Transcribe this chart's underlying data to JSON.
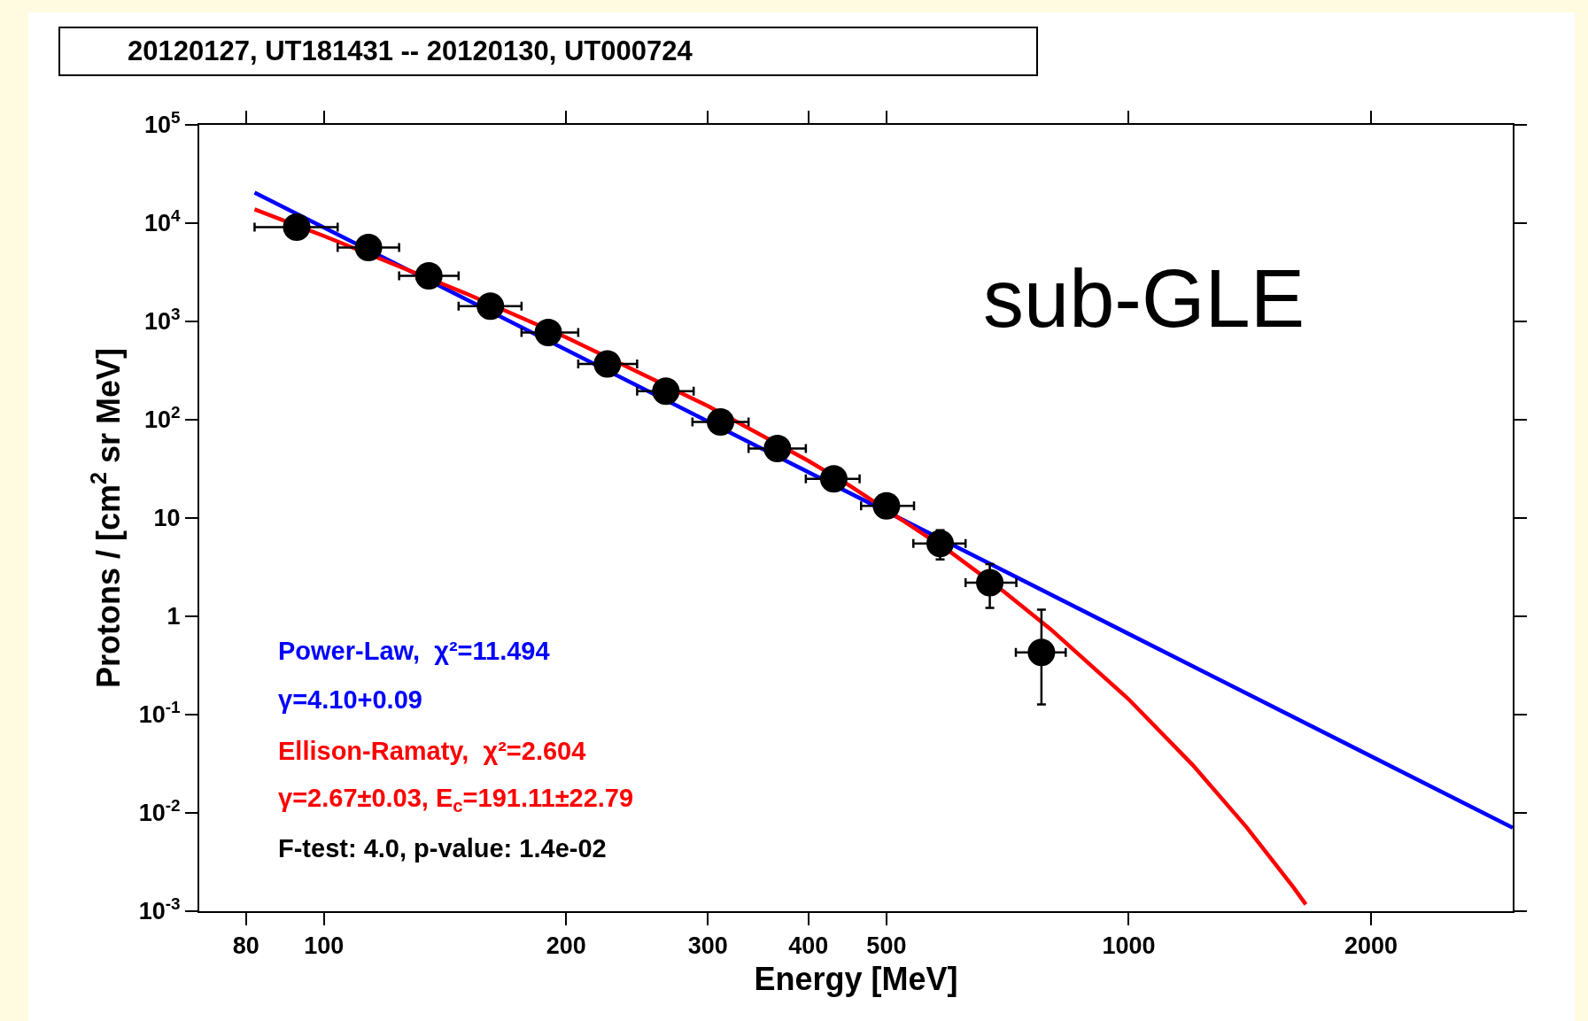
{
  "chart_data": {
    "type": "scatter",
    "title": "20120127, UT181431 -- 20120130, UT000724",
    "xlabel": "Energy [MeV]",
    "ylabel": "Protons / [cm$^{2}$ sr MeV]",
    "log": "xy",
    "grid": false,
    "marker": "circle",
    "xlim": [
      70,
      3000
    ],
    "xticks": [
      80,
      100,
      200,
      300,
      400,
      500,
      1000,
      2000
    ],
    "ylim": [
      0.001,
      100000
    ],
    "yticks": [
      {
        "value": 0.001,
        "label": "10$^{-3}$"
      },
      {
        "value": 0.01,
        "label": "10$^{-2}$"
      },
      {
        "value": 0.1,
        "label": "10$^{-1}$"
      },
      1,
      10,
      {
        "value": 100,
        "label": "10$^{2}$"
      },
      {
        "value": 1000,
        "label": "10$^{3}$"
      },
      {
        "value": 10000,
        "label": "10$^{4}$"
      },
      {
        "value": 100000,
        "label": "10$^{5}$"
      }
    ],
    "series": [
      {
        "type": "line",
        "color": "#0000ff",
        "line_style": "solid",
        "marker": "none",
        "x": [
          82,
          1000,
          3000
        ],
        "values": [
          20500,
          0.662,
          0.00706
        ]
      },
      {
        "type": "line",
        "color": "#ff0000",
        "line_style": "solid",
        "marker": "none",
        "x": [
          82,
          100,
          150,
          200,
          300,
          400,
          450,
          600,
          700,
          800,
          1000,
          1200,
          1400,
          1600,
          1660
        ],
        "values": [
          13800,
          7400,
          1930,
          689,
          138,
          38.1,
          21.4,
          4.54,
          1.78,
          0.738,
          0.143,
          0.0309,
          0.0072,
          0.00177,
          0.00117
        ]
      },
      {
        "color": "#000000",
        "x": [
          92.5,
          113.6,
          135,
          161,
          190,
          225,
          266,
          311,
          366,
          430,
          500,
          583,
          672,
          779
        ],
        "values": [
          9100,
          5660,
          2910,
          1430,
          771,
          369,
          195,
          95,
          51,
          25,
          13.3,
          5.5,
          2.2,
          0.43
        ],
        "xerrors": [
          [
            82,
            104
          ],
          [
            104,
            124
          ],
          [
            124,
            147
          ],
          [
            147,
            176
          ],
          [
            176,
            207
          ],
          [
            207,
            245
          ],
          [
            245,
            288
          ],
          [
            287,
            337
          ],
          [
            337,
            397
          ],
          [
            397,
            463
          ],
          [
            465,
            541
          ],
          [
            540,
            627
          ],
          [
            627,
            725
          ],
          [
            724,
            835
          ]
        ],
        "errors": [
          null,
          null,
          null,
          null,
          null,
          null,
          null,
          null,
          null,
          null,
          null,
          [
            3.8,
            7.5
          ],
          [
            1.22,
            3.4
          ],
          [
            0.127,
            1.17
          ]
        ]
      }
    ],
    "annotations": [
      "sub-GLE",
      "Power-Law,  χ²=11.494",
      "γ=4.10+0.09",
      "Ellison-Ramaty,  χ²=2.604",
      "γ=2.67±0.03, E$_{c}$=191.11±22.79",
      "F-test: 4.0, p-value: 1.4e-02"
    ]
  }
}
